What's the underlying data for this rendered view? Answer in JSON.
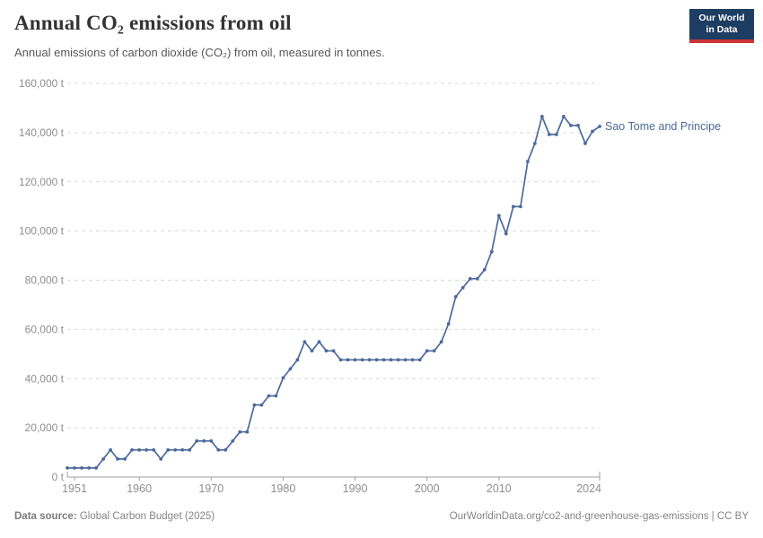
{
  "header": {
    "title": "Annual CO₂ emissions from oil",
    "subtitle": "Annual emissions of carbon dioxide (CO₂) from oil, measured in tonnes."
  },
  "logo": {
    "line1": "Our World",
    "line2": "in Data",
    "bg_color": "#1d3d63",
    "stripe_color": "#cb3434"
  },
  "footer": {
    "source_label": "Data source:",
    "source_value": " Global Carbon Budget (2025)",
    "citation": "OurWorldinData.org/co2-and-greenhouse-gas-emissions | CC BY"
  },
  "chart_data": {
    "type": "line",
    "title": "Annual CO₂ emissions from oil",
    "xlabel": "",
    "ylabel": "tonnes",
    "xlim": [
      1950,
      2024
    ],
    "ylim": [
      0,
      160000
    ],
    "grid": "horizontal-dashed",
    "legend": "end-of-line-label",
    "xticks": [
      1951,
      1960,
      1970,
      1980,
      1990,
      2000,
      2010,
      2024
    ],
    "yticks": [
      0,
      20000,
      40000,
      60000,
      80000,
      100000,
      120000,
      140000,
      160000
    ],
    "ytick_labels": [
      "0 t",
      "20,000 t",
      "40,000 t",
      "60,000 t",
      "80,000 t",
      "100,000 t",
      "120,000 t",
      "140,000 t",
      "160,000 t"
    ],
    "series": [
      {
        "name": "Sao Tome and Principe",
        "color": "#4C6A9C",
        "x": [
          1950,
          1951,
          1952,
          1953,
          1954,
          1955,
          1956,
          1957,
          1958,
          1959,
          1960,
          1961,
          1962,
          1963,
          1964,
          1965,
          1966,
          1967,
          1968,
          1969,
          1970,
          1971,
          1972,
          1973,
          1974,
          1975,
          1976,
          1977,
          1978,
          1979,
          1980,
          1981,
          1982,
          1983,
          1984,
          1985,
          1986,
          1987,
          1988,
          1989,
          1990,
          1991,
          1992,
          1993,
          1994,
          1995,
          1996,
          1997,
          1998,
          1999,
          2000,
          2001,
          2002,
          2003,
          2004,
          2005,
          2006,
          2007,
          2008,
          2009,
          2010,
          2011,
          2012,
          2013,
          2014,
          2015,
          2016,
          2017,
          2018,
          2019,
          2020,
          2021,
          2022,
          2023,
          2024
        ],
        "values": [
          3664,
          3664,
          3664,
          3664,
          3664,
          7328,
          10992,
          7328,
          7328,
          10992,
          10992,
          10992,
          10992,
          7328,
          10992,
          10992,
          10992,
          10992,
          14656,
          14656,
          14656,
          10992,
          10992,
          14656,
          18320,
          18320,
          29312,
          29312,
          32976,
          32976,
          40304,
          43968,
          47632,
          54960,
          51296,
          54960,
          51296,
          51296,
          47632,
          47632,
          47632,
          47632,
          47632,
          47632,
          47632,
          47632,
          47632,
          47632,
          47632,
          47632,
          51296,
          51296,
          54960,
          62288,
          73280,
          76944,
          80608,
          80608,
          84272,
          91600,
          106256,
          98928,
          109920,
          109920,
          128240,
          135568,
          146560,
          139232,
          139232,
          146560,
          142896,
          142896,
          135568,
          140500,
          142500
        ]
      }
    ],
    "colors": {
      "line": "#4C6A9C",
      "gridline": "#d9d9d9",
      "axis": "#9e9e9e",
      "tick_label": "#8e8e8e"
    }
  }
}
